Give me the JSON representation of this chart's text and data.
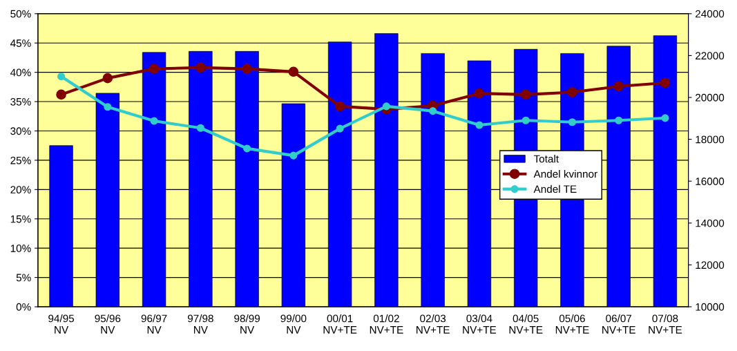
{
  "chart_data": {
    "type": "bar",
    "categories": [
      "94/95\nNV",
      "95/96\nNV",
      "96/97\nNV",
      "97/98\nNV",
      "98/99\nNV",
      "99/00\nNV",
      "00/01\nNV+TE",
      "01/02\nNV+TE",
      "02/03\nNV+TE",
      "03/04\nNV+TE",
      "04/05\nNV+TE",
      "05/06\nNV+TE",
      "06/07\nNV+TE",
      "07/08\nNV+TE"
    ],
    "series": [
      {
        "name": "Totalt",
        "axis": "y2",
        "color": "#0000ff",
        "values": [
          17700,
          20200,
          22150,
          22200,
          22200,
          19700,
          22650,
          23050,
          22100,
          21750,
          22300,
          22100,
          22450,
          22950
        ]
      },
      {
        "name": "Andel kvinnor",
        "type": "line",
        "axis": "y",
        "color": "#800000",
        "marker": "circle",
        "values": [
          36.2,
          39.0,
          40.6,
          40.8,
          40.6,
          40.1,
          34.2,
          33.7,
          34.3,
          36.4,
          36.2,
          36.6,
          37.6,
          38.2
        ]
      },
      {
        "name": "Andel TE",
        "type": "line",
        "axis": "y",
        "color": "#33cccc",
        "marker": "circle",
        "values": [
          39.3,
          34.1,
          31.7,
          30.5,
          27.0,
          25.8,
          30.4,
          34.2,
          33.4,
          31.0,
          31.8,
          31.5,
          31.8,
          32.2
        ]
      }
    ],
    "ylim": [
      0,
      50
    ],
    "yticks": [
      {
        "value": 0,
        "label": "0%"
      },
      {
        "value": 5,
        "label": "5%"
      },
      {
        "value": 10,
        "label": "10%"
      },
      {
        "value": 15,
        "label": "15%"
      },
      {
        "value": 20,
        "label": "20%"
      },
      {
        "value": 25,
        "label": "25%"
      },
      {
        "value": 30,
        "label": "30%"
      },
      {
        "value": 35,
        "label": "35%"
      },
      {
        "value": 40,
        "label": "40%"
      },
      {
        "value": 45,
        "label": "45%"
      },
      {
        "value": 50,
        "label": "50%"
      }
    ],
    "y2lim": [
      10000,
      24000
    ],
    "y2ticks": [
      10000,
      12000,
      14000,
      16000,
      18000,
      20000,
      22000,
      24000
    ],
    "grid": "y",
    "legend": "right",
    "line_style": "solid"
  }
}
